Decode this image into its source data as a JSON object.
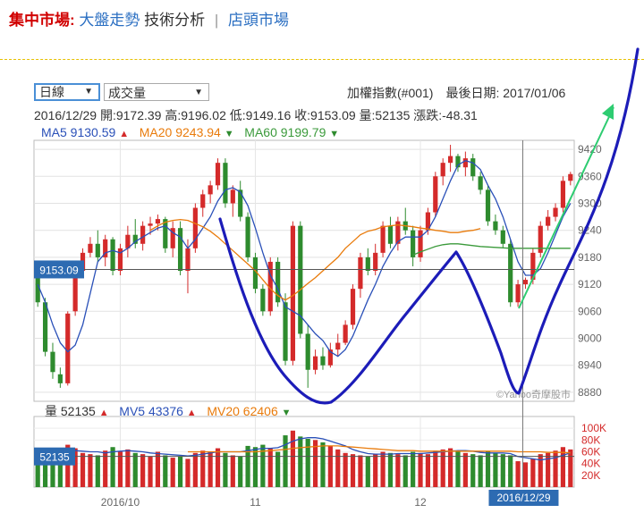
{
  "nav": {
    "title": "集中市場:",
    "link1": "大盤走勢",
    "link2": "技術分析",
    "sep": "|",
    "link3": "店頭市場"
  },
  "selects": {
    "period": "日線",
    "indicator": "成交量"
  },
  "index_info": "加權指數(#001)　最後日期: 2017/01/06",
  "ohlc": {
    "date": "2016/12/29",
    "open": "開:9172.39",
    "high": "高:9196.02",
    "low": "低:9149.16",
    "close": "收:9153.09",
    "volume": "量:52135",
    "change": "漲跌:-48.31"
  },
  "ma": {
    "ma5": "MA5 9130.59",
    "ma5_dir": "▲",
    "ma20": "MA20 9243.94",
    "ma20_dir": "▼",
    "ma60": "MA60 9199.79",
    "ma60_dir": "▼"
  },
  "volume_info": {
    "vol": "量 52135",
    "vol_dir": "▲",
    "mv5": "MV5 43376",
    "mv5_dir": "▲",
    "mv20": "MV20 62406",
    "mv20_dir": "▼"
  },
  "crosshair": {
    "price_label": "9153.09",
    "volume_label": "52135",
    "date_label": "2016/12/29"
  },
  "watermark": "©Yahoo奇摩股市",
  "colors": {
    "up": "#d42a2a",
    "down": "#2e8b2e",
    "ma5": "#2a50b8",
    "ma20": "#e97b0b",
    "ma60": "#3b9a3b",
    "annotation": "#1c1cb8",
    "arrow": "#2ecc71"
  },
  "chart_data": {
    "type": "candlestick",
    "y_ticks": [
      "9420",
      "9360",
      "9300",
      "9240",
      "9180",
      "9120",
      "9060",
      "9000",
      "8940",
      "8880"
    ],
    "ylim": [
      8860,
      9440
    ],
    "volume_ticks": [
      "100K",
      "80K",
      "60K",
      "40K",
      "20K"
    ],
    "volume_ylim": [
      0,
      120000
    ],
    "x_ticks": [
      {
        "label": "2016/10",
        "index": 11
      },
      {
        "label": "11",
        "index": 29
      },
      {
        "label": "12",
        "index": 51
      }
    ],
    "candles": [
      [
        9150,
        9160,
        9070,
        9080,
        60
      ],
      [
        9080,
        9090,
        8960,
        8970,
        64
      ],
      [
        8970,
        8990,
        8910,
        8925,
        62
      ],
      [
        8920,
        8935,
        8890,
        8900,
        60
      ],
      [
        8900,
        9060,
        8895,
        9055,
        72
      ],
      [
        9060,
        9160,
        9050,
        9150,
        66
      ],
      [
        9150,
        9200,
        9140,
        9190,
        58
      ],
      [
        9190,
        9225,
        9180,
        9210,
        56
      ],
      [
        9210,
        9240,
        9170,
        9180,
        54
      ],
      [
        9180,
        9230,
        9160,
        9220,
        62
      ],
      [
        9220,
        9225,
        9140,
        9150,
        68
      ],
      [
        9150,
        9210,
        9140,
        9200,
        60
      ],
      [
        9200,
        9250,
        9180,
        9230,
        64
      ],
      [
        9230,
        9265,
        9200,
        9210,
        58
      ],
      [
        9210,
        9260,
        9195,
        9250,
        56
      ],
      [
        9250,
        9270,
        9230,
        9255,
        52
      ],
      [
        9255,
        9275,
        9240,
        9265,
        60
      ],
      [
        9265,
        9270,
        9190,
        9200,
        54
      ],
      [
        9200,
        9260,
        9180,
        9245,
        50
      ],
      [
        9245,
        9260,
        9140,
        9150,
        52
      ],
      [
        9150,
        9220,
        9100,
        9200,
        48
      ],
      [
        9200,
        9300,
        9190,
        9290,
        58
      ],
      [
        9290,
        9330,
        9270,
        9320,
        62
      ],
      [
        9320,
        9350,
        9300,
        9340,
        60
      ],
      [
        9340,
        9400,
        9330,
        9390,
        66
      ],
      [
        9390,
        9400,
        9290,
        9300,
        58
      ],
      [
        9300,
        9340,
        9270,
        9330,
        54
      ],
      [
        9330,
        9350,
        9260,
        9270,
        52
      ],
      [
        9270,
        9280,
        9170,
        9180,
        70
      ],
      [
        9180,
        9190,
        9100,
        9110,
        68
      ],
      [
        9110,
        9120,
        9050,
        9060,
        72
      ],
      [
        9060,
        9180,
        9050,
        9170,
        66
      ],
      [
        9170,
        9180,
        9070,
        9080,
        60
      ],
      [
        9080,
        9100,
        8940,
        8950,
        88
      ],
      [
        8950,
        9260,
        8940,
        9250,
        96
      ],
      [
        9250,
        9260,
        9000,
        9010,
        86
      ],
      [
        9010,
        9030,
        8890,
        8930,
        82
      ],
      [
        8930,
        8975,
        8920,
        8960,
        80
      ],
      [
        8960,
        8980,
        8930,
        8940,
        76
      ],
      [
        8940,
        8990,
        8935,
        8975,
        70
      ],
      [
        8975,
        9010,
        8960,
        8990,
        64
      ],
      [
        8990,
        9040,
        8985,
        9030,
        58
      ],
      [
        9030,
        9120,
        9020,
        9110,
        56
      ],
      [
        9110,
        9190,
        9090,
        9180,
        54
      ],
      [
        9180,
        9200,
        9140,
        9150,
        52
      ],
      [
        9150,
        9210,
        9140,
        9190,
        56
      ],
      [
        9190,
        9260,
        9180,
        9250,
        60
      ],
      [
        9250,
        9270,
        9200,
        9210,
        58
      ],
      [
        9210,
        9270,
        9195,
        9260,
        56
      ],
      [
        9260,
        9290,
        9230,
        9240,
        54
      ],
      [
        9240,
        9250,
        9160,
        9180,
        60
      ],
      [
        9180,
        9250,
        9170,
        9240,
        58
      ],
      [
        9240,
        9290,
        9230,
        9280,
        56
      ],
      [
        9280,
        9370,
        9270,
        9360,
        62
      ],
      [
        9360,
        9400,
        9340,
        9390,
        64
      ],
      [
        9390,
        9430,
        9370,
        9405,
        66
      ],
      [
        9405,
        9410,
        9370,
        9380,
        60
      ],
      [
        9380,
        9415,
        9360,
        9400,
        58
      ],
      [
        9400,
        9410,
        9350,
        9360,
        56
      ],
      [
        9360,
        9370,
        9320,
        9330,
        54
      ],
      [
        9330,
        9340,
        9250,
        9260,
        60
      ],
      [
        9260,
        9275,
        9230,
        9240,
        58
      ],
      [
        9240,
        9250,
        9200,
        9210,
        56
      ],
      [
        9210,
        9220,
        9070,
        9080,
        54
      ],
      [
        9080,
        9130,
        9070,
        9120,
        44
      ],
      [
        9120,
        9135,
        9110,
        9130,
        42
      ],
      [
        9130,
        9200,
        9120,
        9190,
        48
      ],
      [
        9190,
        9260,
        9180,
        9250,
        56
      ],
      [
        9250,
        9285,
        9240,
        9270,
        58
      ],
      [
        9270,
        9300,
        9260,
        9290,
        62
      ],
      [
        9290,
        9360,
        9280,
        9350,
        68
      ],
      [
        9350,
        9370,
        9340,
        9365,
        64
      ]
    ],
    "ma5": [
      9120,
      9080,
      9030,
      8990,
      8970,
      8985,
      9030,
      9100,
      9170,
      9190,
      9195,
      9190,
      9200,
      9215,
      9225,
      9235,
      9245,
      9250,
      9235,
      9225,
      9200,
      9220,
      9245,
      9270,
      9305,
      9330,
      9335,
      9325,
      9295,
      9245,
      9190,
      9140,
      9110,
      9070,
      9060,
      9050,
      9030,
      9010,
      8995,
      8970,
      8960,
      8975,
      9005,
      9045,
      9085,
      9120,
      9160,
      9190,
      9215,
      9225,
      9225,
      9225,
      9240,
      9270,
      9310,
      9350,
      9385,
      9395,
      9390,
      9375,
      9340,
      9310,
      9270,
      9220,
      9170,
      9140,
      9140,
      9155,
      9190,
      9230,
      9270,
      9300
    ],
    "ma20": [
      null,
      null,
      null,
      null,
      null,
      null,
      null,
      null,
      null,
      null,
      null,
      null,
      null,
      null,
      null,
      9240,
      9250,
      9258,
      9262,
      9264,
      9262,
      9255,
      9248,
      9238,
      9225,
      9210,
      9195,
      9180,
      9165,
      9150,
      9130,
      9110,
      9095,
      9085,
      9095,
      9108,
      9122,
      9135,
      9150,
      9165,
      9180,
      9200,
      9215,
      9230,
      9238,
      9242,
      9248,
      9250,
      9252,
      9250,
      9248,
      9245,
      9243,
      9240,
      9238,
      9235,
      9235,
      9238,
      9240,
      9244
    ],
    "ma60": [
      null,
      null,
      null,
      null,
      null,
      null,
      null,
      null,
      null,
      null,
      null,
      null,
      null,
      null,
      null,
      null,
      null,
      null,
      null,
      null,
      null,
      null,
      null,
      null,
      null,
      null,
      null,
      null,
      null,
      null,
      null,
      null,
      null,
      null,
      null,
      null,
      null,
      null,
      null,
      null,
      null,
      null,
      null,
      null,
      null,
      null,
      null,
      null,
      null,
      null,
      9185,
      9192,
      9198,
      9204,
      9208,
      9210,
      9210,
      9208,
      9206,
      9204,
      9203,
      9202,
      9201,
      9200,
      9200,
      9200,
      9200,
      9200,
      9200,
      9200,
      9200,
      9200
    ],
    "mv5": [
      58,
      60,
      62,
      63,
      64,
      62,
      61,
      60,
      60,
      58,
      60,
      61,
      62,
      61,
      60,
      58,
      57,
      56,
      55,
      54,
      53,
      54,
      56,
      58,
      60,
      60,
      60,
      60,
      62,
      64,
      66,
      66,
      67,
      72,
      78,
      82,
      84,
      84,
      82,
      78,
      74,
      70,
      64,
      60,
      57,
      56,
      56,
      56,
      57,
      57,
      57,
      57,
      58,
      59,
      60,
      61,
      62,
      62,
      61,
      59,
      58,
      58,
      58,
      57,
      52,
      50,
      48,
      46,
      48,
      50,
      54,
      58
    ],
    "mv20": [
      null,
      null,
      null,
      null,
      null,
      null,
      null,
      null,
      null,
      null,
      null,
      null,
      null,
      null,
      null,
      null,
      null,
      null,
      null,
      null,
      60,
      60,
      60,
      60,
      60,
      60,
      60,
      60,
      60,
      60,
      61,
      62,
      63,
      64,
      66,
      67,
      68,
      69,
      70,
      70,
      70,
      69,
      68,
      67,
      66,
      65,
      64,
      63,
      62,
      62,
      62,
      61,
      61,
      61,
      61,
      61,
      61,
      61,
      61,
      61,
      61,
      61,
      61,
      61,
      60,
      60,
      60,
      60,
      59,
      59,
      59,
      58
    ]
  }
}
